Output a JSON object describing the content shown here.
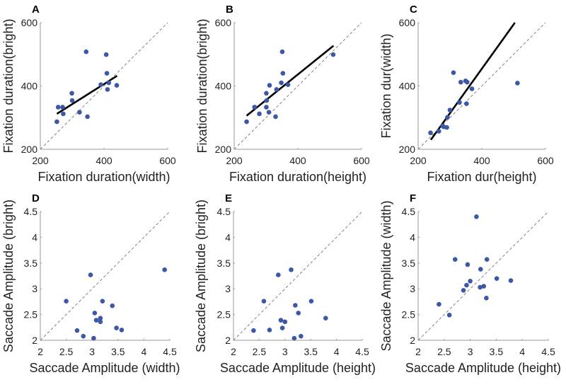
{
  "chart_data": [
    {
      "type": "scatter",
      "panel": "A",
      "xlabel": "Fixation duration(width)",
      "ylabel": "Fixation duration(bright)",
      "xlim": [
        200,
        600
      ],
      "ylim": [
        200,
        600
      ],
      "xticks": [
        "200",
        "400",
        "600"
      ],
      "yticks": [
        "200",
        "400",
        "600"
      ],
      "identity_line": true,
      "fit_line": [
        [
          252,
          312
        ],
        [
          441,
          432
        ]
      ],
      "points": [
        [
          252,
          287
        ],
        [
          256,
          333
        ],
        [
          270,
          333
        ],
        [
          272,
          312
        ],
        [
          299,
          377
        ],
        [
          300,
          354
        ],
        [
          323,
          317
        ],
        [
          348,
          303
        ],
        [
          344,
          508
        ],
        [
          390,
          404
        ],
        [
          407,
          499
        ],
        [
          409,
          440
        ],
        [
          411,
          389
        ],
        [
          415,
          410
        ],
        [
          440,
          402
        ]
      ]
    },
    {
      "type": "scatter",
      "panel": "B",
      "xlabel": "Fixation duration(height)",
      "ylabel": "Fixation duration(bright)",
      "xlim": [
        200,
        600
      ],
      "ylim": [
        200,
        600
      ],
      "xticks": [
        "200",
        "400",
        "600"
      ],
      "yticks": [
        "200",
        "400",
        "600"
      ],
      "identity_line": true,
      "fit_line": [
        [
          239,
          306
        ],
        [
          512,
          527
        ]
      ],
      "points": [
        [
          239,
          287
        ],
        [
          264,
          333
        ],
        [
          279,
          312
        ],
        [
          301,
          377
        ],
        [
          302,
          354
        ],
        [
          301,
          333
        ],
        [
          309,
          317
        ],
        [
          311,
          402
        ],
        [
          330,
          303
        ],
        [
          333,
          389
        ],
        [
          348,
          410
        ],
        [
          351,
          508
        ],
        [
          353,
          440
        ],
        [
          369,
          404
        ],
        [
          511,
          499
        ]
      ]
    },
    {
      "type": "scatter",
      "panel": "C",
      "xlabel": "Fixation dur(height)",
      "ylabel": "Fixation dur(width)",
      "xlim": [
        200,
        600
      ],
      "ylim": [
        200,
        600
      ],
      "xticks": [
        "200",
        "400",
        "600"
      ],
      "yticks": [
        "200",
        "400",
        "600"
      ],
      "identity_line": true,
      "fit_line": [
        [
          240,
          230
        ],
        [
          504,
          600
        ]
      ],
      "points": [
        [
          239,
          252
        ],
        [
          265,
          257
        ],
        [
          277,
          274
        ],
        [
          280,
          271
        ],
        [
          290,
          269
        ],
        [
          292,
          301
        ],
        [
          300,
          324
        ],
        [
          330,
          348
        ],
        [
          311,
          442
        ],
        [
          334,
          412
        ],
        [
          349,
          416
        ],
        [
          354,
          412
        ],
        [
          369,
          391
        ],
        [
          352,
          344
        ],
        [
          512,
          409
        ]
      ]
    },
    {
      "type": "scatter",
      "panel": "D",
      "xlabel": "Saccade Amplitude (width)",
      "ylabel": "Saccade Amplitude (bright)",
      "xlim": [
        2,
        4.5
      ],
      "ylim": [
        2,
        4.5
      ],
      "xticks": [
        "2",
        "2.5",
        "3",
        "3.5",
        "4",
        "4.5"
      ],
      "yticks": [
        "2",
        "2.5",
        "3",
        "3.5",
        "4",
        "4.5"
      ],
      "identity_line": true,
      "points": [
        [
          2.5,
          2.76
        ],
        [
          2.71,
          2.19
        ],
        [
          2.83,
          2.08
        ],
        [
          2.97,
          3.27
        ],
        [
          3.05,
          2.53
        ],
        [
          3.08,
          2.39
        ],
        [
          3.03,
          2.04
        ],
        [
          3.16,
          2.43
        ],
        [
          3.16,
          2.36
        ],
        [
          3.2,
          2.76
        ],
        [
          3.39,
          2.67
        ],
        [
          3.47,
          2.24
        ],
        [
          3.57,
          2.2
        ],
        [
          4.4,
          3.37
        ]
      ]
    },
    {
      "type": "scatter",
      "panel": "E",
      "xlabel": "Saccade Amplitude (height)",
      "ylabel": "Saccade Amplitude (bright)",
      "xlim": [
        2,
        4.5
      ],
      "ylim": [
        2,
        4.5
      ],
      "xticks": [
        "2",
        "2.5",
        "3",
        "3.5",
        "4",
        "4.5"
      ],
      "yticks": [
        "2",
        "2.5",
        "3",
        "3.5",
        "4",
        "4.5"
      ],
      "identity_line": true,
      "points": [
        [
          2.39,
          2.19
        ],
        [
          2.59,
          2.76
        ],
        [
          2.7,
          2.2
        ],
        [
          2.87,
          3.27
        ],
        [
          2.92,
          2.39
        ],
        [
          3.0,
          2.36
        ],
        [
          2.95,
          2.24
        ],
        [
          3.12,
          3.37
        ],
        [
          3.18,
          2.04
        ],
        [
          3.2,
          2.68
        ],
        [
          3.26,
          2.53
        ],
        [
          3.31,
          2.08
        ],
        [
          3.51,
          2.76
        ],
        [
          3.79,
          2.43
        ]
      ]
    },
    {
      "type": "scatter",
      "panel": "F",
      "xlabel": "Saccade Amplitude (height)",
      "ylabel": "Saccade Amplitude (width)",
      "xlim": [
        2,
        4.5
      ],
      "ylim": [
        2,
        4.5
      ],
      "xticks": [
        "2",
        "2.5",
        "3",
        "3.5",
        "4",
        "4.5"
      ],
      "yticks": [
        "2",
        "2.5",
        "3",
        "3.5",
        "4",
        "4.5"
      ],
      "identity_line": true,
      "points": [
        [
          2.4,
          2.7
        ],
        [
          2.6,
          2.49
        ],
        [
          2.71,
          3.57
        ],
        [
          2.87,
          2.97
        ],
        [
          2.93,
          3.07
        ],
        [
          2.95,
          3.47
        ],
        [
          3.0,
          3.15
        ],
        [
          3.12,
          4.4
        ],
        [
          3.19,
          3.03
        ],
        [
          3.2,
          3.38
        ],
        [
          3.26,
          3.05
        ],
        [
          3.31,
          2.82
        ],
        [
          3.32,
          3.57
        ],
        [
          3.51,
          3.2
        ],
        [
          3.78,
          3.16
        ]
      ]
    }
  ],
  "colors": {
    "points": "#3b57a6",
    "fit_line": "#000000",
    "identity_line": "#777777",
    "axis": "#999999"
  }
}
